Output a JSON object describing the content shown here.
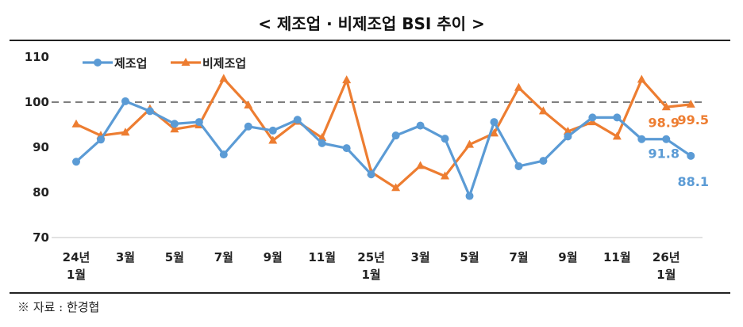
{
  "title": "< 제조업 · 비제조업 BSI 추이 >",
  "source": "※ 자료 : 한경협",
  "chart_data": {
    "type": "line",
    "title": "< 제조업 · 비제조업 BSI 추이 >",
    "xlabel": "",
    "ylabel": "",
    "ylim": [
      70,
      110
    ],
    "yticks": [
      "70",
      "80",
      "90",
      "100",
      "110"
    ],
    "reference_line": 100,
    "legend_position": "top-left",
    "x_tick_labels": [
      {
        "index": 0,
        "lines": [
          "24년",
          "1월"
        ]
      },
      {
        "index": 2,
        "lines": [
          "3월"
        ]
      },
      {
        "index": 4,
        "lines": [
          "5월"
        ]
      },
      {
        "index": 6,
        "lines": [
          "7월"
        ]
      },
      {
        "index": 8,
        "lines": [
          "9월"
        ]
      },
      {
        "index": 10,
        "lines": [
          "11월"
        ]
      },
      {
        "index": 12,
        "lines": [
          "25년",
          "1월"
        ]
      },
      {
        "index": 14,
        "lines": [
          "3월"
        ]
      },
      {
        "index": 16,
        "lines": [
          "5월"
        ]
      },
      {
        "index": 18,
        "lines": [
          "7월"
        ]
      },
      {
        "index": 20,
        "lines": [
          "9월"
        ]
      },
      {
        "index": 22,
        "lines": [
          "11월"
        ]
      },
      {
        "index": 24,
        "lines": [
          "26년",
          "1월"
        ]
      }
    ],
    "series": [
      {
        "name": "제조업",
        "color": "#5b9bd5",
        "marker": "circle",
        "values": [
          86.8,
          91.7,
          100.2,
          98.0,
          95.2,
          95.6,
          88.4,
          94.6,
          93.7,
          96.1,
          90.9,
          89.8,
          84.0,
          92.6,
          94.8,
          91.9,
          79.2,
          95.6,
          85.8,
          87.0,
          92.4,
          96.6,
          96.6,
          91.8,
          91.8,
          88.1
        ],
        "data_labels": [
          {
            "index": 24,
            "text": "91.8"
          },
          {
            "index": 25,
            "text": "88.1"
          }
        ]
      },
      {
        "name": "비제조업",
        "color": "#ed7d31",
        "marker": "triangle",
        "values": [
          95.1,
          92.6,
          93.3,
          98.5,
          94.0,
          94.9,
          105.2,
          99.3,
          91.5,
          95.7,
          92.1,
          104.9,
          84.5,
          81.0,
          85.9,
          83.6,
          90.6,
          93.1,
          103.2,
          98.0,
          93.5,
          95.6,
          92.4,
          105.0,
          98.9,
          99.5
        ],
        "data_labels": [
          {
            "index": 24,
            "text": "98.9"
          },
          {
            "index": 25,
            "text": "99.5"
          }
        ]
      }
    ]
  }
}
